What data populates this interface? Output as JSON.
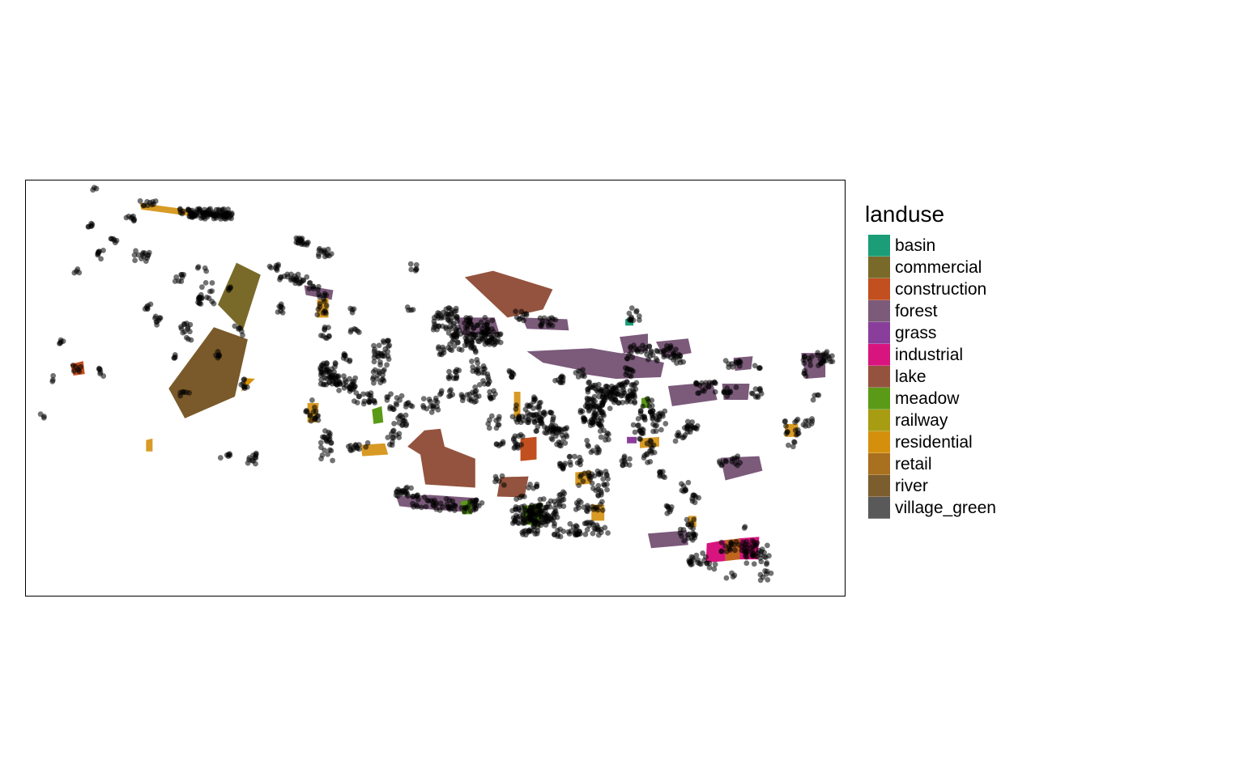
{
  "legend": {
    "title": "landuse",
    "items": [
      {
        "label": "basin",
        "color": "#1B9E77"
      },
      {
        "label": "commercial",
        "color": "#7A6A2A"
      },
      {
        "label": "construction",
        "color": "#C24F1F"
      },
      {
        "label": "forest",
        "color": "#7B5A7A"
      },
      {
        "label": "grass",
        "color": "#8A3E9B"
      },
      {
        "label": "industrial",
        "color": "#D8147E"
      },
      {
        "label": "lake",
        "color": "#93533E"
      },
      {
        "label": "meadow",
        "color": "#5B9A17"
      },
      {
        "label": "railway",
        "color": "#A89C12"
      },
      {
        "label": "residential",
        "color": "#D4900D"
      },
      {
        "label": "retail",
        "color": "#A9701F"
      },
      {
        "label": "river",
        "color": "#7C5D2E"
      },
      {
        "label": "village_green",
        "color": "#595959"
      }
    ]
  }
}
